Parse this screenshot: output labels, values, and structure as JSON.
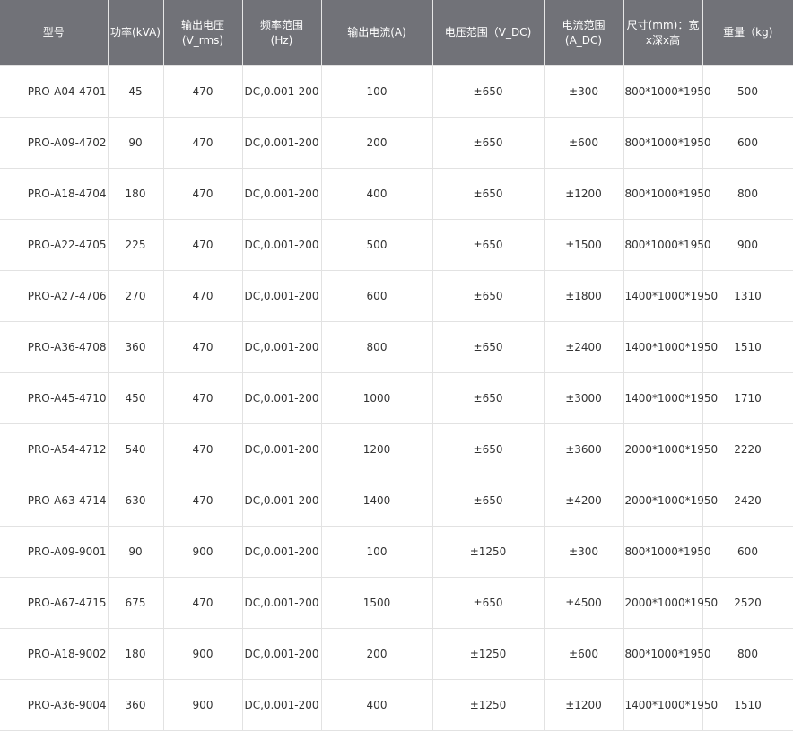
{
  "table": {
    "header": [
      [
        "型号"
      ],
      [
        "功率(kVA)"
      ],
      [
        "输出电压",
        "(V_rms)"
      ],
      [
        "频率范围",
        "(Hz)"
      ],
      [
        "输出电流(A)"
      ],
      [
        "电压范围（V_DC)"
      ],
      [
        "电流范围",
        "(A_DC)"
      ],
      [
        "尺寸(mm)：宽",
        "x深x高"
      ],
      [
        "重量（kg)"
      ]
    ],
    "rows": [
      [
        "PRO-A04-4701",
        "45",
        "470",
        "DC,0.001-200",
        "100",
        "±650",
        "±300",
        "800*1000*1950",
        "500"
      ],
      [
        "PRO-A09-4702",
        "90",
        "470",
        "DC,0.001-200",
        "200",
        "±650",
        "±600",
        "800*1000*1950",
        "600"
      ],
      [
        "PRO-A18-4704",
        "180",
        "470",
        "DC,0.001-200",
        "400",
        "±650",
        "±1200",
        "800*1000*1950",
        "800"
      ],
      [
        "PRO-A22-4705",
        "225",
        "470",
        "DC,0.001-200",
        "500",
        "±650",
        "±1500",
        "800*1000*1950",
        "900"
      ],
      [
        "PRO-A27-4706",
        "270",
        "470",
        "DC,0.001-200",
        "600",
        "±650",
        "±1800",
        "1400*1000*1950",
        "1310"
      ],
      [
        "PRO-A36-4708",
        "360",
        "470",
        "DC,0.001-200",
        "800",
        "±650",
        "±2400",
        "1400*1000*1950",
        "1510"
      ],
      [
        "PRO-A45-4710",
        "450",
        "470",
        "DC,0.001-200",
        "1000",
        "±650",
        "±3000",
        "1400*1000*1950",
        "1710"
      ],
      [
        "PRO-A54-4712",
        "540",
        "470",
        "DC,0.001-200",
        "1200",
        "±650",
        "±3600",
        "2000*1000*1950",
        "2220"
      ],
      [
        "PRO-A63-4714",
        "630",
        "470",
        "DC,0.001-200",
        "1400",
        "±650",
        "±4200",
        "2000*1000*1950",
        "2420"
      ],
      [
        "PRO-A09-9001",
        "90",
        "900",
        "DC,0.001-200",
        "100",
        "±1250",
        "±300",
        "800*1000*1950",
        "600"
      ],
      [
        "PRO-A67-4715",
        "675",
        "470",
        "DC,0.001-200",
        "1500",
        "±650",
        "±4500",
        "2000*1000*1950",
        "2520"
      ],
      [
        "PRO-A18-9002",
        "180",
        "900",
        "DC,0.001-200",
        "200",
        "±1250",
        "±600",
        "800*1000*1950",
        "800"
      ],
      [
        "PRO-A36-9004",
        "360",
        "900",
        "DC,0.001-200",
        "400",
        "±1250",
        "±1200",
        "1400*1000*1950",
        "1510"
      ]
    ]
  }
}
